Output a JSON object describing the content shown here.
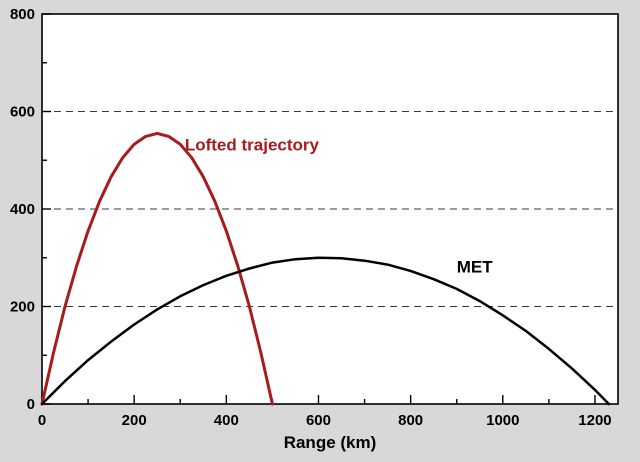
{
  "figure": {
    "background_color": "#d8d8d8",
    "plot_background": "#ffffff",
    "accent_red": "#a61c1c"
  },
  "chart_data": {
    "type": "line",
    "title": "",
    "xlabel": "Range (km)",
    "ylabel": "",
    "xlim": [
      0,
      1250
    ],
    "ylim": [
      0,
      800
    ],
    "x_ticks": [
      0,
      200,
      400,
      600,
      800,
      1000,
      1200
    ],
    "y_ticks": [
      0,
      200,
      400,
      600,
      800
    ],
    "x_minor_ticks": [
      100,
      300,
      500,
      700,
      900,
      1100
    ],
    "y_minor_ticks": [
      100,
      300,
      500,
      700
    ],
    "gridlines_y": [
      200,
      400,
      600
    ],
    "grid_style": "dashed",
    "legend_position": "none",
    "series": [
      {
        "name": "Lofted trajectory",
        "color": "#a61c1c",
        "width": 3,
        "points": [
          [
            0,
            0
          ],
          [
            25,
            105
          ],
          [
            50,
            200
          ],
          [
            75,
            283
          ],
          [
            100,
            355
          ],
          [
            125,
            416
          ],
          [
            150,
            466
          ],
          [
            175,
            505
          ],
          [
            200,
            533
          ],
          [
            225,
            549
          ],
          [
            250,
            555
          ],
          [
            275,
            549
          ],
          [
            300,
            533
          ],
          [
            325,
            505
          ],
          [
            350,
            466
          ],
          [
            375,
            416
          ],
          [
            400,
            355
          ],
          [
            425,
            283
          ],
          [
            450,
            200
          ],
          [
            475,
            105
          ],
          [
            500,
            0
          ]
        ]
      },
      {
        "name": "MET",
        "color": "#000000",
        "width": 2.5,
        "points": [
          [
            0,
            0
          ],
          [
            50,
            47
          ],
          [
            100,
            90
          ],
          [
            150,
            128
          ],
          [
            200,
            163
          ],
          [
            250,
            194
          ],
          [
            300,
            221
          ],
          [
            350,
            244
          ],
          [
            400,
            263
          ],
          [
            450,
            278
          ],
          [
            500,
            290
          ],
          [
            550,
            297
          ],
          [
            600,
            300
          ],
          [
            650,
            299
          ],
          [
            700,
            294
          ],
          [
            750,
            286
          ],
          [
            800,
            273
          ],
          [
            850,
            256
          ],
          [
            900,
            236
          ],
          [
            950,
            211
          ],
          [
            1000,
            182
          ],
          [
            1050,
            150
          ],
          [
            1100,
            113
          ],
          [
            1150,
            73
          ],
          [
            1200,
            29
          ],
          [
            1230,
            0
          ]
        ]
      }
    ],
    "annotations": [
      {
        "text": "Lofted trajectory",
        "x": 310,
        "y": 520,
        "color": "#a61c1c",
        "anchor": "start"
      },
      {
        "text": "MET",
        "x": 900,
        "y": 270,
        "color": "#000000",
        "anchor": "start"
      }
    ]
  }
}
